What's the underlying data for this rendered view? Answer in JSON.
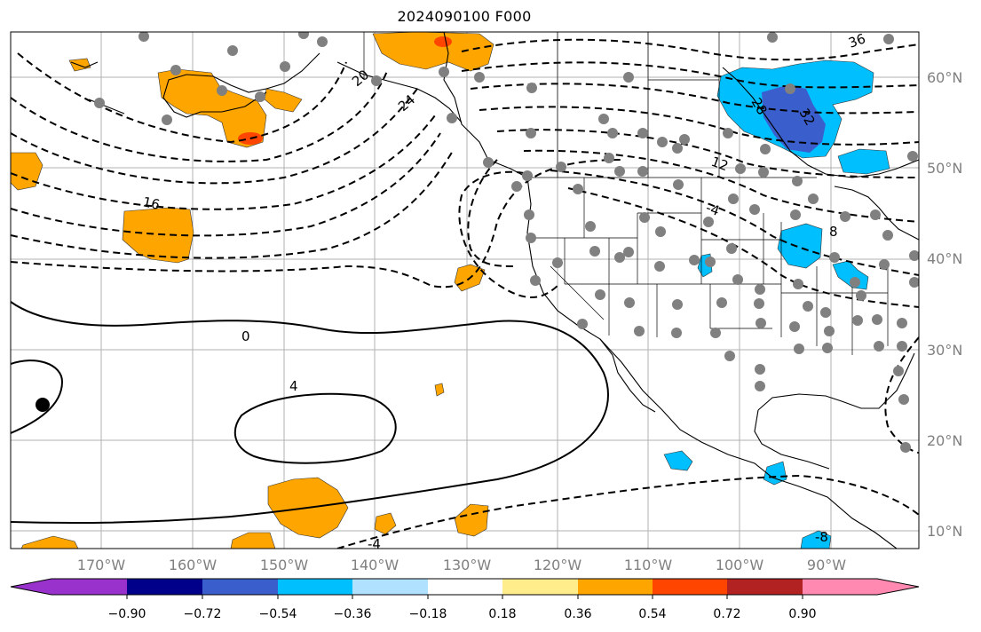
{
  "title": "2024090100 F000",
  "lat_labels": [
    "60°N",
    "50°N",
    "40°N",
    "30°N",
    "20°N",
    "10°N"
  ],
  "lon_labels": [
    "170°W",
    "160°W",
    "150°W",
    "140°W",
    "130°W",
    "120°W",
    "110°W",
    "100°W",
    "90°W"
  ],
  "contour_labels": [
    "0",
    "4",
    "-4",
    "16",
    "8",
    "-8",
    "-4",
    "12",
    "-12",
    "20",
    "-20",
    "24",
    "-24",
    "28",
    "-28",
    "32",
    "-32",
    "36"
  ],
  "colorbar": {
    "ticks": [
      "−0.90",
      "−0.72",
      "−0.54",
      "−0.36",
      "−0.18",
      "0.18",
      "0.36",
      "0.54",
      "0.72",
      "0.90"
    ],
    "colors": [
      "#9932cc",
      "#00008b",
      "#3a5fcd",
      "#00bfff",
      "#b0e2ff",
      "#ffffff",
      "#ffec8b",
      "#ffa500",
      "#ff4500",
      "#b22222",
      "#ff89b0"
    ]
  },
  "map": {
    "positive_fill": "#ffa500",
    "positive_strong_fill": "#ff4500",
    "negative_fill": "#00bfff",
    "negative_medium_fill": "#3a5fcd",
    "negative_light_fill": "#b0e2ff",
    "station_color": "#808080"
  }
}
